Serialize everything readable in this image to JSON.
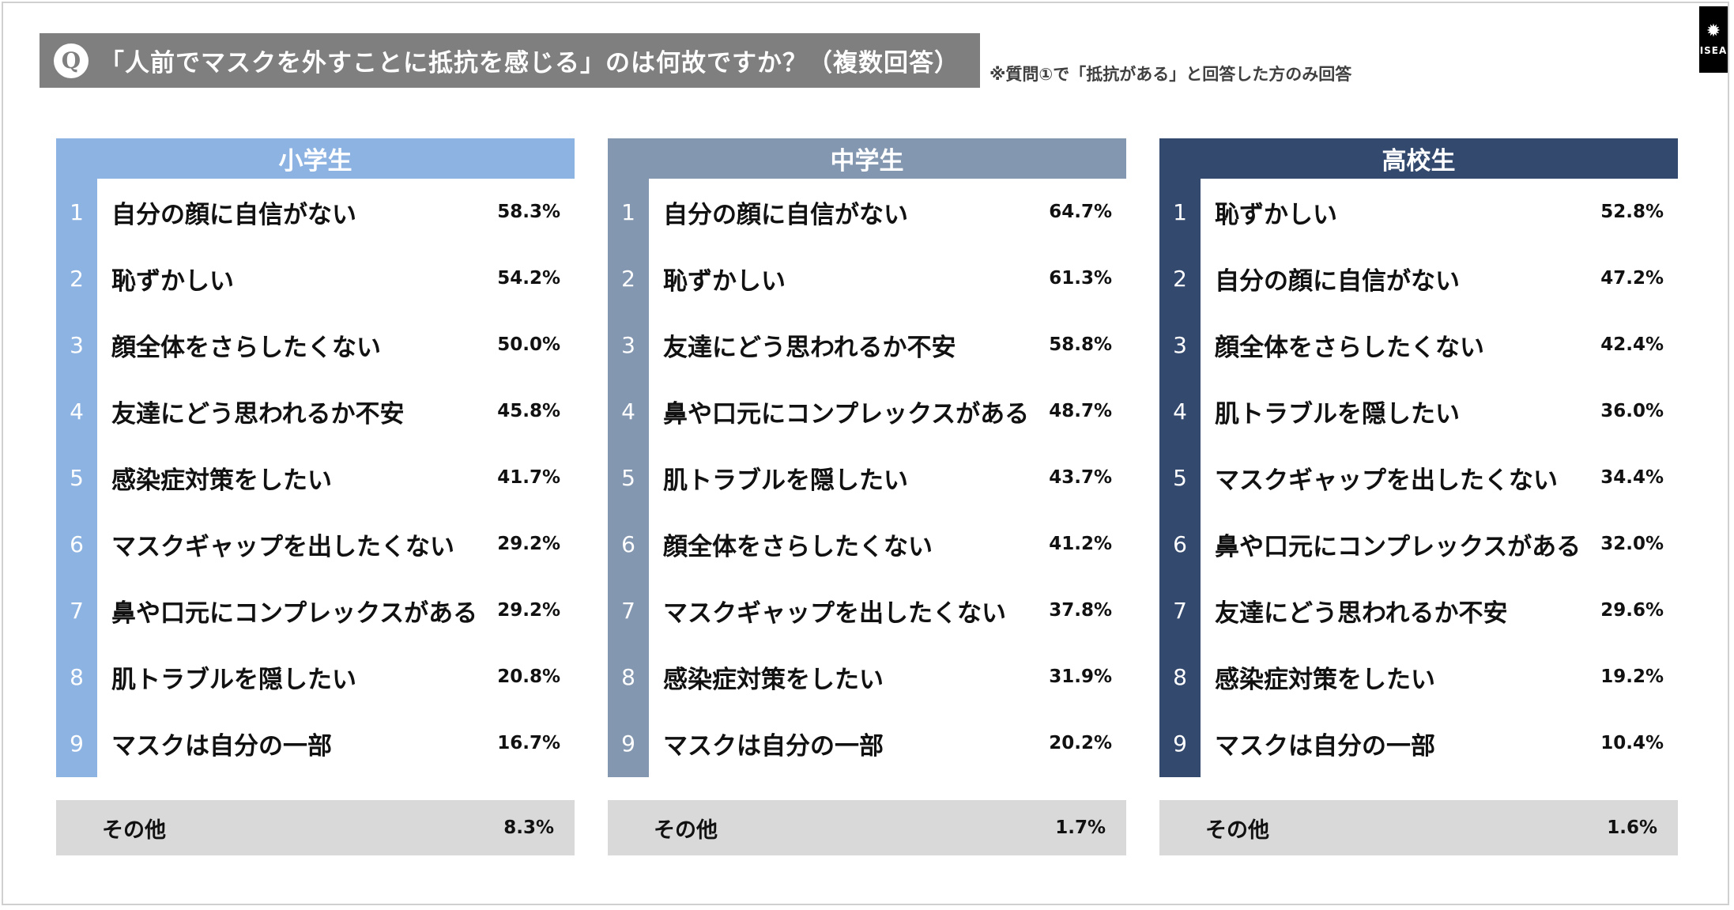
{
  "header": {
    "q_badge": "Q",
    "title": "「人前でマスクを外すことに抵抗を感じる」のは何故ですか？（複数回答）",
    "note": "※質問①で「抵抗がある」と回答した方のみ回答",
    "logo_text": "ISEA"
  },
  "colors": {
    "elementary": "#8db3e2",
    "middle": "#8497b0",
    "high": "#34496e",
    "title_bar": "#7f7f7f",
    "other_bg": "#d9d9d9"
  },
  "chart_data": [
    {
      "type": "table",
      "group": "小学生",
      "rows": [
        {
          "rank": "1",
          "label": "自分の顔に自信がない",
          "value": "58.3%"
        },
        {
          "rank": "2",
          "label": "恥ずかしい",
          "value": "54.2%"
        },
        {
          "rank": "3",
          "label": "顔全体をさらしたくない",
          "value": "50.0%"
        },
        {
          "rank": "4",
          "label": "友達にどう思われるか不安",
          "value": "45.8%"
        },
        {
          "rank": "5",
          "label": "感染症対策をしたい",
          "value": "41.7%"
        },
        {
          "rank": "6",
          "label": "マスクギャップを出したくない",
          "value": "29.2%"
        },
        {
          "rank": "7",
          "label": "鼻や口元にコンプレックスがある",
          "value": "29.2%"
        },
        {
          "rank": "8",
          "label": "肌トラブルを隠したい",
          "value": "20.8%"
        },
        {
          "rank": "9",
          "label": "マスクは自分の一部",
          "value": "16.7%"
        }
      ],
      "other": {
        "label": "その他",
        "value": "8.3%"
      }
    },
    {
      "type": "table",
      "group": "中学生",
      "rows": [
        {
          "rank": "1",
          "label": "自分の顔に自信がない",
          "value": "64.7%"
        },
        {
          "rank": "2",
          "label": "恥ずかしい",
          "value": "61.3%"
        },
        {
          "rank": "3",
          "label": "友達にどう思われるか不安",
          "value": "58.8%"
        },
        {
          "rank": "4",
          "label": "鼻や口元にコンプレックスがある",
          "value": "48.7%"
        },
        {
          "rank": "5",
          "label": "肌トラブルを隠したい",
          "value": "43.7%"
        },
        {
          "rank": "6",
          "label": "顔全体をさらしたくない",
          "value": "41.2%"
        },
        {
          "rank": "7",
          "label": "マスクギャップを出したくない",
          "value": "37.8%"
        },
        {
          "rank": "8",
          "label": "感染症対策をしたい",
          "value": "31.9%"
        },
        {
          "rank": "9",
          "label": "マスクは自分の一部",
          "value": "20.2%"
        }
      ],
      "other": {
        "label": "その他",
        "value": "1.7%"
      }
    },
    {
      "type": "table",
      "group": "高校生",
      "rows": [
        {
          "rank": "1",
          "label": "恥ずかしい",
          "value": "52.8%"
        },
        {
          "rank": "2",
          "label": "自分の顔に自信がない",
          "value": "47.2%"
        },
        {
          "rank": "3",
          "label": "顔全体をさらしたくない",
          "value": "42.4%"
        },
        {
          "rank": "4",
          "label": "肌トラブルを隠したい",
          "value": "36.0%"
        },
        {
          "rank": "5",
          "label": "マスクギャップを出したくない",
          "value": "34.4%"
        },
        {
          "rank": "6",
          "label": "鼻や口元にコンプレックスがある",
          "value": "32.0%"
        },
        {
          "rank": "7",
          "label": "友達にどう思われるか不安",
          "value": "29.6%"
        },
        {
          "rank": "8",
          "label": "感染症対策をしたい",
          "value": "19.2%"
        },
        {
          "rank": "9",
          "label": "マスクは自分の一部",
          "value": "10.4%"
        }
      ],
      "other": {
        "label": "その他",
        "value": "1.6%"
      }
    }
  ]
}
